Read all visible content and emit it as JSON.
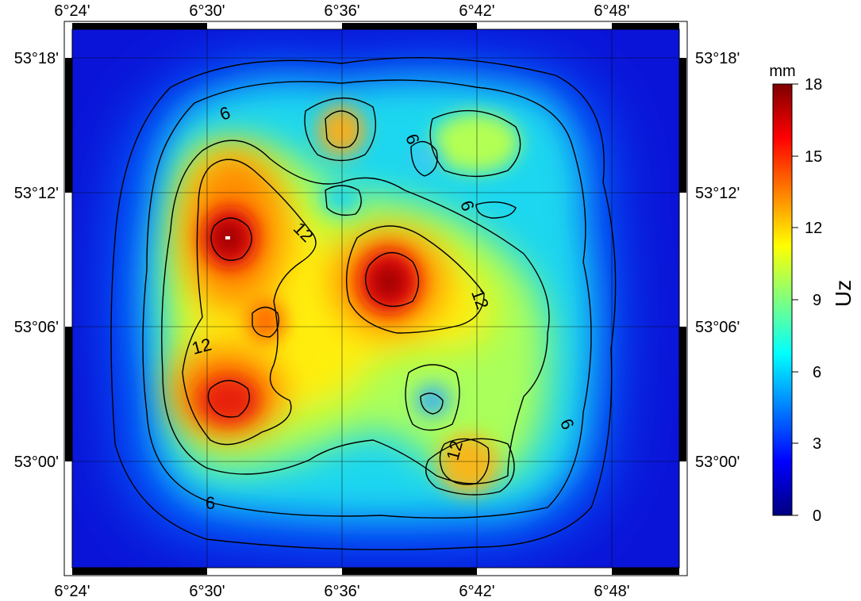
{
  "map": {
    "lon_ticks": [
      "6°24'",
      "6°30'",
      "6°36'",
      "6°42'",
      "6°48'"
    ],
    "lat_ticks": [
      "53°18'",
      "53°12'",
      "53°06'",
      "53°00'"
    ],
    "contour_labels": [
      "6",
      "6",
      "6",
      "6",
      "12",
      "12",
      "12",
      "12"
    ]
  },
  "colorbar": {
    "title": "Uz",
    "unit": "mm",
    "ticks": [
      "18",
      "15",
      "12",
      "9",
      "6",
      "3",
      "0"
    ],
    "range": [
      0,
      18
    ],
    "colors": [
      "#00007f",
      "#0000ff",
      "#007fff",
      "#00ffff",
      "#7fff7f",
      "#ffff00",
      "#ff7f00",
      "#ff0000",
      "#7f0000"
    ]
  },
  "chart_data": {
    "type": "heatmap",
    "title": "",
    "variable": "Uz",
    "unit": "mm",
    "lon_range": [
      "6°24'",
      "6°51'"
    ],
    "lat_range": [
      "52°54'",
      "53°20'"
    ],
    "value_range": [
      0,
      18
    ],
    "contour_levels": [
      3,
      6,
      9,
      12,
      15
    ],
    "peaks": [
      {
        "lon": "6°31'",
        "lat": "53°10'",
        "value": 18
      },
      {
        "lon": "6°38'",
        "lat": "53°08'",
        "value": 17
      },
      {
        "lon": "6°31'",
        "lat": "53°03'",
        "value": 16
      },
      {
        "lon": "6°32'",
        "lat": "53°06'",
        "value": 15
      },
      {
        "lon": "6°36'",
        "lat": "53°15'",
        "value": 13
      },
      {
        "lon": "6°42'",
        "lat": "52°59'",
        "value": 13
      },
      {
        "lon": "6°42'",
        "lat": "53°15'",
        "value": 10
      }
    ]
  }
}
